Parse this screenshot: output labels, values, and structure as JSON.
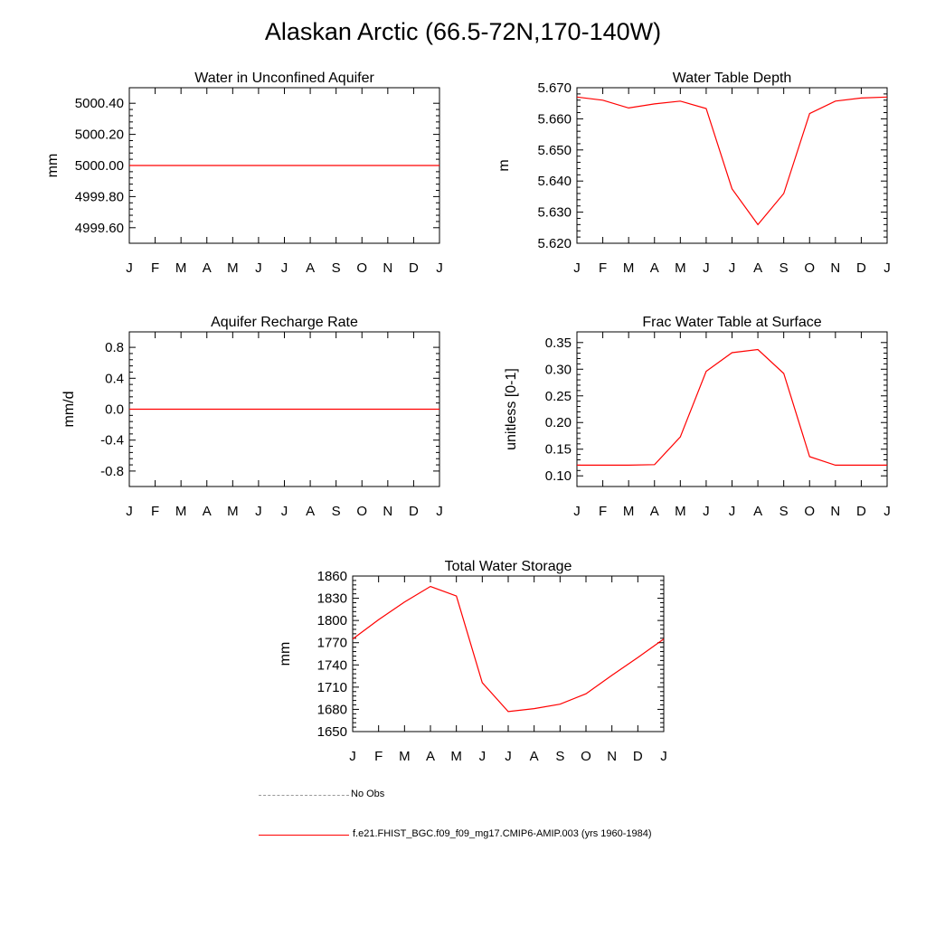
{
  "page": {
    "title": "Alaskan Arctic (66.5-72N,170-140W)"
  },
  "legend": {
    "entries": [
      {
        "label": "No Obs",
        "color": "#999999",
        "style": "dashed"
      },
      {
        "label": "f.e21.FHIST_BGC.f09_f09_mg17.CMIP6-AMIP.003 (yrs 1960-1984)",
        "color": "#ff0000",
        "style": "solid"
      }
    ]
  },
  "chart_data": [
    {
      "type": "line",
      "title": "Water in Unconfined Aquifer",
      "ylabel": "mm",
      "xlabel": "",
      "categories": [
        "J",
        "F",
        "M",
        "A",
        "M",
        "J",
        "J",
        "A",
        "S",
        "O",
        "N",
        "D",
        "J"
      ],
      "ylim": [
        4999.5,
        5000.5
      ],
      "yticks": [
        4999.6,
        4999.8,
        5000.0,
        5000.2,
        5000.4
      ],
      "ytick_labels": [
        "4999.60",
        "4999.80",
        "5000.00",
        "5000.20",
        "5000.40"
      ],
      "series": [
        {
          "color": "#ff0000",
          "values": [
            5000,
            5000,
            5000,
            5000,
            5000,
            5000,
            5000,
            5000,
            5000,
            5000,
            5000,
            5000,
            5000
          ]
        }
      ]
    },
    {
      "type": "line",
      "title": "Water Table Depth",
      "ylabel": "m",
      "xlabel": "",
      "categories": [
        "J",
        "F",
        "M",
        "A",
        "M",
        "J",
        "J",
        "A",
        "S",
        "O",
        "N",
        "D",
        "J"
      ],
      "ylim": [
        5.62,
        5.67
      ],
      "yticks": [
        5.62,
        5.63,
        5.64,
        5.65,
        5.66,
        5.67
      ],
      "ytick_labels": [
        "5.620",
        "5.630",
        "5.640",
        "5.650",
        "5.660",
        "5.670"
      ],
      "series": [
        {
          "color": "#ff0000",
          "values": [
            5.667,
            5.666,
            5.6635,
            5.6648,
            5.6657,
            5.6633,
            5.6375,
            5.626,
            5.636,
            5.6617,
            5.6657,
            5.6667,
            5.667
          ]
        }
      ]
    },
    {
      "type": "line",
      "title": "Aquifer Recharge Rate",
      "ylabel": "mm/d",
      "xlabel": "",
      "categories": [
        "J",
        "F",
        "M",
        "A",
        "M",
        "J",
        "J",
        "A",
        "S",
        "O",
        "N",
        "D",
        "J"
      ],
      "ylim": [
        -1.0,
        1.0
      ],
      "yticks": [
        -0.8,
        -0.4,
        0.0,
        0.4,
        0.8
      ],
      "ytick_labels": [
        "-0.8",
        "-0.4",
        "0.0",
        "0.4",
        "0.8"
      ],
      "series": [
        {
          "color": "#ff0000",
          "values": [
            0,
            0,
            0,
            0,
            0,
            0,
            0,
            0,
            0,
            0,
            0,
            0,
            0
          ]
        }
      ]
    },
    {
      "type": "line",
      "title": "Frac Water Table at Surface",
      "ylabel": "unitless [0-1]",
      "xlabel": "",
      "categories": [
        "J",
        "F",
        "M",
        "A",
        "M",
        "J",
        "J",
        "A",
        "S",
        "O",
        "N",
        "D",
        "J"
      ],
      "ylim": [
        0.08,
        0.37
      ],
      "yticks": [
        0.1,
        0.15,
        0.2,
        0.25,
        0.3,
        0.35
      ],
      "ytick_labels": [
        "0.10",
        "0.15",
        "0.20",
        "0.25",
        "0.30",
        "0.35"
      ],
      "series": [
        {
          "color": "#ff0000",
          "values": [
            0.12,
            0.12,
            0.12,
            0.121,
            0.173,
            0.296,
            0.331,
            0.337,
            0.292,
            0.136,
            0.12,
            0.12,
            0.12
          ]
        }
      ]
    },
    {
      "type": "line",
      "title": "Total Water Storage",
      "ylabel": "mm",
      "xlabel": "",
      "categories": [
        "J",
        "F",
        "M",
        "A",
        "M",
        "J",
        "J",
        "A",
        "S",
        "O",
        "N",
        "D",
        "J"
      ],
      "ylim": [
        1650,
        1860
      ],
      "yticks": [
        1650,
        1680,
        1710,
        1740,
        1770,
        1800,
        1830,
        1860
      ],
      "ytick_labels": [
        "1650",
        "1680",
        "1710",
        "1740",
        "1770",
        "1800",
        "1830",
        "1860"
      ],
      "series": [
        {
          "color": "#ff0000",
          "values": [
            1775,
            1801,
            1825,
            1846,
            1833,
            1716,
            1677,
            1681,
            1687,
            1701,
            1726,
            1750,
            1775
          ]
        }
      ]
    }
  ]
}
